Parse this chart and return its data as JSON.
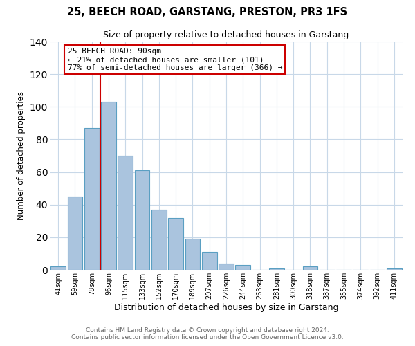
{
  "title": "25, BEECH ROAD, GARSTANG, PRESTON, PR3 1FS",
  "subtitle": "Size of property relative to detached houses in Garstang",
  "xlabel": "Distribution of detached houses by size in Garstang",
  "ylabel": "Number of detached properties",
  "bar_labels": [
    "41sqm",
    "59sqm",
    "78sqm",
    "96sqm",
    "115sqm",
    "133sqm",
    "152sqm",
    "170sqm",
    "189sqm",
    "207sqm",
    "226sqm",
    "244sqm",
    "263sqm",
    "281sqm",
    "300sqm",
    "318sqm",
    "337sqm",
    "355sqm",
    "374sqm",
    "392sqm",
    "411sqm"
  ],
  "bar_values": [
    2,
    45,
    87,
    103,
    70,
    61,
    37,
    32,
    19,
    11,
    4,
    3,
    0,
    1,
    0,
    2,
    0,
    0,
    0,
    0,
    1
  ],
  "bar_color": "#aac4de",
  "bar_edge_color": "#5a9fc2",
  "ylim": [
    0,
    140
  ],
  "yticks": [
    0,
    20,
    40,
    60,
    80,
    100,
    120,
    140
  ],
  "annotation_box_text": "25 BEECH ROAD: 90sqm\n← 21% of detached houses are smaller (101)\n77% of semi-detached houses are larger (366) →",
  "annotation_box_color": "#ffffff",
  "annotation_box_edge_color": "#cc0000",
  "annotation_line_color": "#cc0000",
  "footer_line1": "Contains HM Land Registry data © Crown copyright and database right 2024.",
  "footer_line2": "Contains public sector information licensed under the Open Government Licence v3.0.",
  "background_color": "#ffffff",
  "grid_color": "#c8d8e8"
}
